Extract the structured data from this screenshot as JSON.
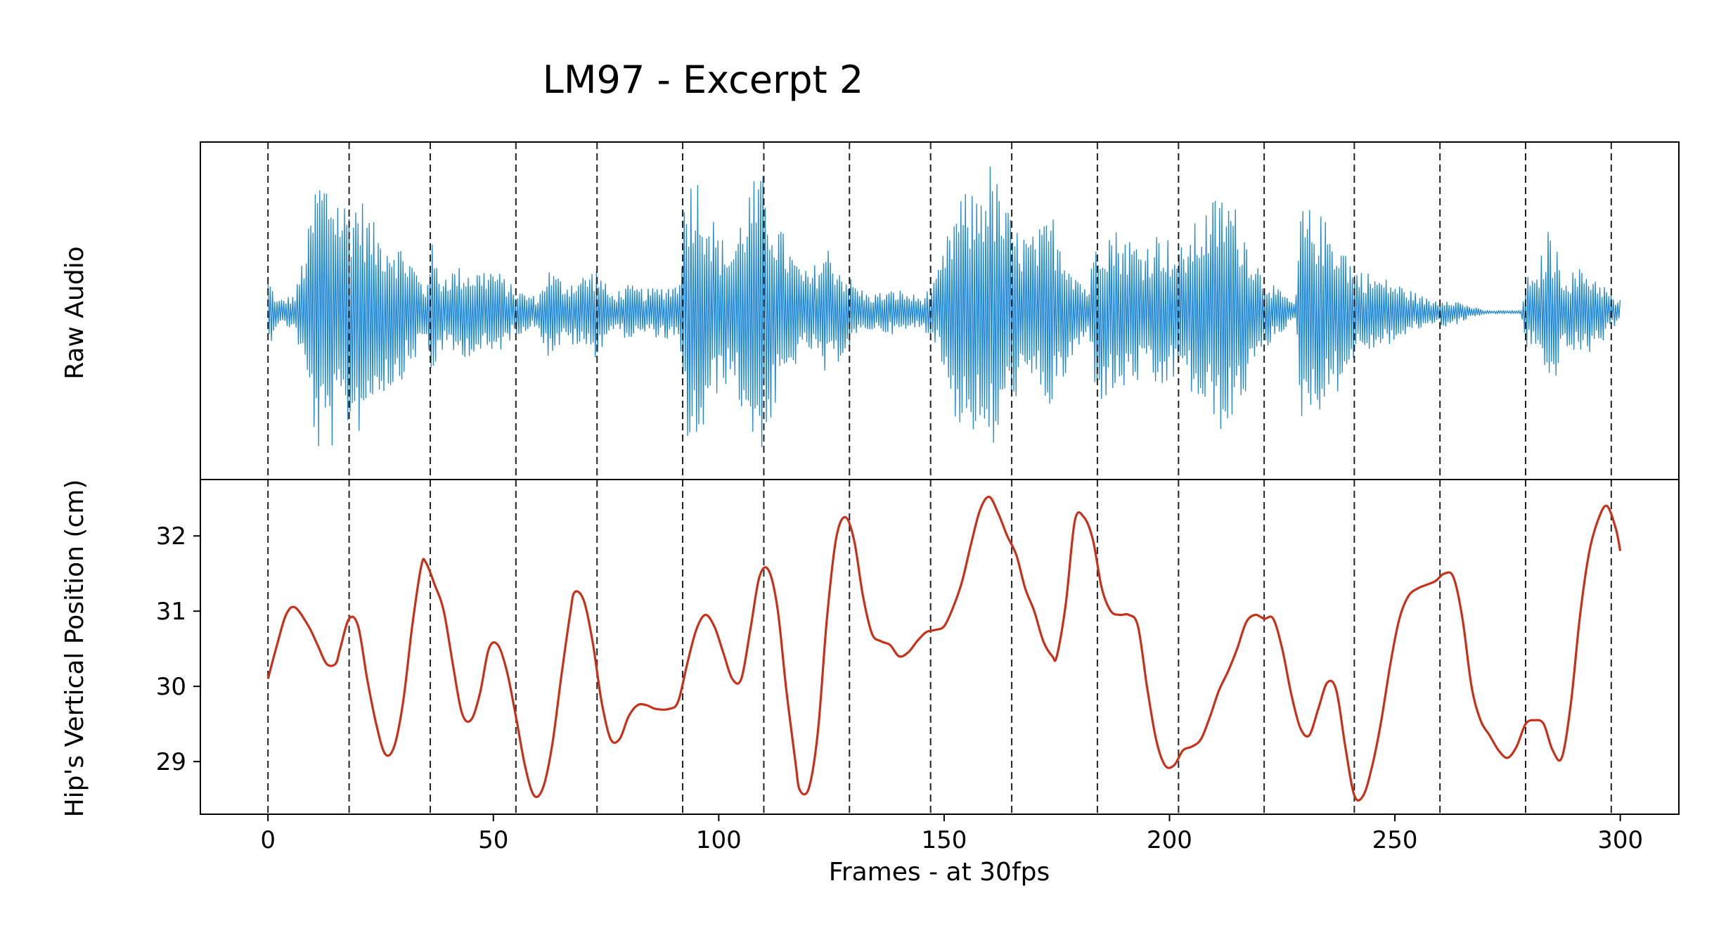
{
  "title": "LM97 - Excerpt 2",
  "chart_data": [
    {
      "type": "line",
      "panel": "top",
      "ylabel": "Raw Audio",
      "series_color": "#1f88d4",
      "y_ticks_visible": false,
      "xlim": [
        -15,
        313
      ],
      "envelope": [
        {
          "x": 0,
          "a": 0.25
        },
        {
          "x": 2,
          "a": 0.08
        },
        {
          "x": 6,
          "a": 0.12
        },
        {
          "x": 9,
          "a": 0.55
        },
        {
          "x": 11,
          "a": 0.95
        },
        {
          "x": 14,
          "a": 0.9
        },
        {
          "x": 17,
          "a": 0.75
        },
        {
          "x": 20,
          "a": 0.8
        },
        {
          "x": 24,
          "a": 0.55
        },
        {
          "x": 28,
          "a": 0.5
        },
        {
          "x": 32,
          "a": 0.35
        },
        {
          "x": 35,
          "a": 0.15
        },
        {
          "x": 36,
          "a": 0.5
        },
        {
          "x": 38,
          "a": 0.25
        },
        {
          "x": 42,
          "a": 0.3
        },
        {
          "x": 46,
          "a": 0.28
        },
        {
          "x": 50,
          "a": 0.3
        },
        {
          "x": 55,
          "a": 0.15
        },
        {
          "x": 60,
          "a": 0.1
        },
        {
          "x": 62,
          "a": 0.3
        },
        {
          "x": 66,
          "a": 0.2
        },
        {
          "x": 70,
          "a": 0.25
        },
        {
          "x": 73,
          "a": 0.3
        },
        {
          "x": 76,
          "a": 0.12
        },
        {
          "x": 80,
          "a": 0.18
        },
        {
          "x": 84,
          "a": 0.15
        },
        {
          "x": 88,
          "a": 0.18
        },
        {
          "x": 91,
          "a": 0.2
        },
        {
          "x": 92,
          "a": 0.65
        },
        {
          "x": 94,
          "a": 1.0
        },
        {
          "x": 97,
          "a": 0.8
        },
        {
          "x": 100,
          "a": 0.5
        },
        {
          "x": 103,
          "a": 0.45
        },
        {
          "x": 107,
          "a": 0.85
        },
        {
          "x": 110,
          "a": 0.9
        },
        {
          "x": 113,
          "a": 0.6
        },
        {
          "x": 117,
          "a": 0.35
        },
        {
          "x": 120,
          "a": 0.25
        },
        {
          "x": 124,
          "a": 0.45
        },
        {
          "x": 127,
          "a": 0.3
        },
        {
          "x": 130,
          "a": 0.2
        },
        {
          "x": 133,
          "a": 0.12
        },
        {
          "x": 140,
          "a": 0.15
        },
        {
          "x": 145,
          "a": 0.1
        },
        {
          "x": 148,
          "a": 0.2
        },
        {
          "x": 153,
          "a": 0.75
        },
        {
          "x": 157,
          "a": 0.8
        },
        {
          "x": 160,
          "a": 1.0
        },
        {
          "x": 163,
          "a": 0.75
        },
        {
          "x": 166,
          "a": 0.55
        },
        {
          "x": 170,
          "a": 0.5
        },
        {
          "x": 174,
          "a": 0.65
        },
        {
          "x": 178,
          "a": 0.35
        },
        {
          "x": 182,
          "a": 0.15
        },
        {
          "x": 184,
          "a": 0.6
        },
        {
          "x": 188,
          "a": 0.55
        },
        {
          "x": 194,
          "a": 0.45
        },
        {
          "x": 198,
          "a": 0.55
        },
        {
          "x": 202,
          "a": 0.4
        },
        {
          "x": 206,
          "a": 0.6
        },
        {
          "x": 210,
          "a": 0.75
        },
        {
          "x": 213,
          "a": 0.8
        },
        {
          "x": 216,
          "a": 0.6
        },
        {
          "x": 220,
          "a": 0.3
        },
        {
          "x": 224,
          "a": 0.15
        },
        {
          "x": 228,
          "a": 0.06
        },
        {
          "x": 229,
          "a": 0.7
        },
        {
          "x": 233,
          "a": 0.65
        },
        {
          "x": 238,
          "a": 0.5
        },
        {
          "x": 241,
          "a": 0.3
        },
        {
          "x": 245,
          "a": 0.25
        },
        {
          "x": 250,
          "a": 0.2
        },
        {
          "x": 255,
          "a": 0.12
        },
        {
          "x": 258,
          "a": 0.08
        },
        {
          "x": 262,
          "a": 0.1
        },
        {
          "x": 266,
          "a": 0.05
        },
        {
          "x": 270,
          "a": 0.01
        },
        {
          "x": 278,
          "a": 0.01
        },
        {
          "x": 279,
          "a": 0.25
        },
        {
          "x": 281,
          "a": 0.2
        },
        {
          "x": 284,
          "a": 0.55
        },
        {
          "x": 288,
          "a": 0.25
        },
        {
          "x": 292,
          "a": 0.3
        },
        {
          "x": 296,
          "a": 0.2
        },
        {
          "x": 299,
          "a": 0.08
        }
      ]
    },
    {
      "type": "line",
      "panel": "bottom",
      "xlabel": "Frames - at 30fps",
      "ylabel": "Hip's Vertical Position (cm)",
      "series_color": "#c8301a",
      "xlim": [
        -15,
        313
      ],
      "ylim": [
        28.3,
        32.75
      ],
      "x_ticks": [
        0,
        50,
        100,
        150,
        200,
        250,
        300
      ],
      "y_ticks": [
        29,
        30,
        31,
        32
      ],
      "points": [
        [
          0,
          30.1
        ],
        [
          2,
          30.55
        ],
        [
          4,
          30.95
        ],
        [
          6,
          31.05
        ],
        [
          9,
          30.8
        ],
        [
          11,
          30.55
        ],
        [
          13,
          30.3
        ],
        [
          15,
          30.3
        ],
        [
          16,
          30.5
        ],
        [
          18,
          30.9
        ],
        [
          20,
          30.8
        ],
        [
          22,
          30.1
        ],
        [
          24,
          29.5
        ],
        [
          26,
          29.1
        ],
        [
          28,
          29.2
        ],
        [
          30,
          29.8
        ],
        [
          32,
          30.8
        ],
        [
          34,
          31.6
        ],
        [
          35,
          31.65
        ],
        [
          37,
          31.35
        ],
        [
          39,
          31.0
        ],
        [
          41,
          30.3
        ],
        [
          43,
          29.65
        ],
        [
          45,
          29.55
        ],
        [
          47,
          29.9
        ],
        [
          49,
          30.5
        ],
        [
          51,
          30.55
        ],
        [
          53,
          30.2
        ],
        [
          55,
          29.6
        ],
        [
          57,
          28.95
        ],
        [
          59,
          28.55
        ],
        [
          61,
          28.65
        ],
        [
          63,
          29.2
        ],
        [
          65,
          30.1
        ],
        [
          67,
          30.95
        ],
        [
          68,
          31.25
        ],
        [
          70,
          31.15
        ],
        [
          72,
          30.6
        ],
        [
          74,
          29.8
        ],
        [
          76,
          29.3
        ],
        [
          78,
          29.3
        ],
        [
          80,
          29.6
        ],
        [
          82,
          29.75
        ],
        [
          84,
          29.75
        ],
        [
          86,
          29.7
        ],
        [
          89,
          29.7
        ],
        [
          91,
          29.8
        ],
        [
          93,
          30.3
        ],
        [
          95,
          30.75
        ],
        [
          97,
          30.95
        ],
        [
          99,
          30.8
        ],
        [
          101,
          30.45
        ],
        [
          103,
          30.1
        ],
        [
          105,
          30.1
        ],
        [
          107,
          30.75
        ],
        [
          109,
          31.45
        ],
        [
          111,
          31.55
        ],
        [
          113,
          31.05
        ],
        [
          115,
          29.95
        ],
        [
          117,
          29.0
        ],
        [
          118,
          28.62
        ],
        [
          120,
          28.65
        ],
        [
          122,
          29.4
        ],
        [
          124,
          30.9
        ],
        [
          126,
          31.95
        ],
        [
          128,
          32.25
        ],
        [
          130,
          31.95
        ],
        [
          132,
          31.2
        ],
        [
          134,
          30.7
        ],
        [
          136,
          30.6
        ],
        [
          138,
          30.55
        ],
        [
          140,
          30.4
        ],
        [
          142,
          30.45
        ],
        [
          144,
          30.6
        ],
        [
          146,
          30.72
        ],
        [
          148,
          30.75
        ],
        [
          150,
          30.8
        ],
        [
          152,
          31.05
        ],
        [
          154,
          31.4
        ],
        [
          156,
          31.9
        ],
        [
          158,
          32.35
        ],
        [
          160,
          32.52
        ],
        [
          162,
          32.3
        ],
        [
          164,
          32.0
        ],
        [
          166,
          31.75
        ],
        [
          168,
          31.3
        ],
        [
          170,
          31.0
        ],
        [
          172,
          30.6
        ],
        [
          174,
          30.4
        ],
        [
          175,
          30.4
        ],
        [
          177,
          31.1
        ],
        [
          179,
          32.2
        ],
        [
          181,
          32.25
        ],
        [
          183,
          31.95
        ],
        [
          185,
          31.3
        ],
        [
          187,
          31.0
        ],
        [
          189,
          30.95
        ],
        [
          191,
          30.95
        ],
        [
          193,
          30.8
        ],
        [
          195,
          30.0
        ],
        [
          197,
          29.3
        ],
        [
          199,
          28.95
        ],
        [
          201,
          28.95
        ],
        [
          203,
          29.15
        ],
        [
          205,
          29.2
        ],
        [
          207,
          29.3
        ],
        [
          209,
          29.6
        ],
        [
          211,
          29.95
        ],
        [
          213,
          30.2
        ],
        [
          215,
          30.5
        ],
        [
          217,
          30.85
        ],
        [
          219,
          30.95
        ],
        [
          221,
          30.9
        ],
        [
          223,
          30.9
        ],
        [
          225,
          30.5
        ],
        [
          227,
          29.9
        ],
        [
          229,
          29.45
        ],
        [
          231,
          29.35
        ],
        [
          233,
          29.7
        ],
        [
          235,
          30.05
        ],
        [
          237,
          29.95
        ],
        [
          239,
          29.2
        ],
        [
          241,
          28.55
        ],
        [
          243,
          28.55
        ],
        [
          245,
          28.95
        ],
        [
          247,
          29.55
        ],
        [
          249,
          30.3
        ],
        [
          251,
          30.9
        ],
        [
          253,
          31.2
        ],
        [
          255,
          31.3
        ],
        [
          257,
          31.35
        ],
        [
          259,
          31.4
        ],
        [
          261,
          31.5
        ],
        [
          263,
          31.45
        ],
        [
          265,
          30.9
        ],
        [
          267,
          30.0
        ],
        [
          269,
          29.55
        ],
        [
          271,
          29.35
        ],
        [
          273,
          29.15
        ],
        [
          275,
          29.05
        ],
        [
          277,
          29.2
        ],
        [
          279,
          29.5
        ],
        [
          281,
          29.55
        ],
        [
          283,
          29.5
        ],
        [
          285,
          29.15
        ],
        [
          287,
          29.05
        ],
        [
          289,
          29.75
        ],
        [
          291,
          30.9
        ],
        [
          293,
          31.75
        ],
        [
          295,
          32.2
        ],
        [
          297,
          32.4
        ],
        [
          299,
          32.1
        ],
        [
          300,
          31.8
        ]
      ]
    }
  ],
  "beat_frames": [
    0,
    18,
    36,
    55,
    73,
    92,
    110,
    129,
    147,
    165,
    184,
    202,
    221,
    241,
    260,
    279,
    298
  ]
}
